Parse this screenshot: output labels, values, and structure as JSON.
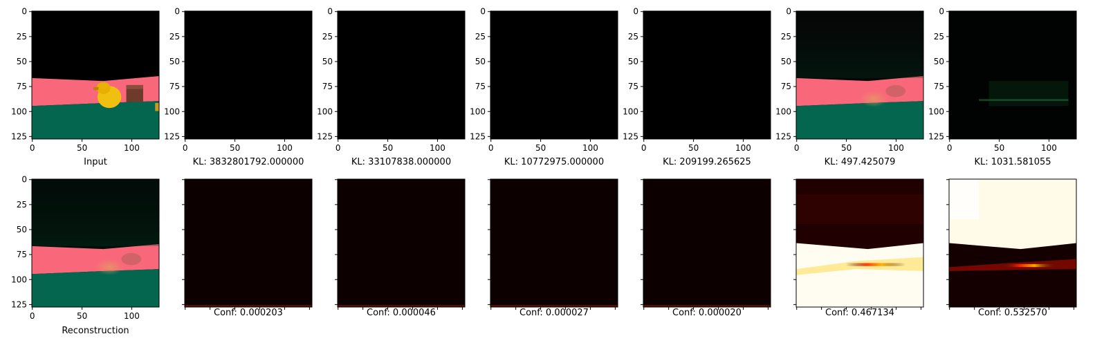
{
  "chart_data": {
    "type": "image-grid",
    "rows": 2,
    "cols": 7,
    "image_extent": [
      0,
      128
    ],
    "x_ticks": [
      "0",
      "50",
      "100"
    ],
    "y_ticks": [
      "0",
      "25",
      "50",
      "75",
      "100",
      "125"
    ],
    "panels_top": [
      {
        "label": "Input",
        "content": "scene"
      },
      {
        "label": "KL: 3832801792.000000",
        "content": "black"
      },
      {
        "label": "KL: 33107838.000000",
        "content": "black"
      },
      {
        "label": "KL: 10772975.000000",
        "content": "black"
      },
      {
        "label": "KL: 209199.265625",
        "content": "black"
      },
      {
        "label": "KL: 497.425079",
        "content": "recon-dim"
      },
      {
        "label": "KL: 1031.581055",
        "content": "dark-green"
      }
    ],
    "panels_bottom": [
      {
        "label": "Reconstruction",
        "content": "recon",
        "ticks": "labeled"
      },
      {
        "label": "Conf: 0.000203",
        "content": "conf-dark",
        "ticks": "unlabeled"
      },
      {
        "label": "Conf: 0.000046",
        "content": "conf-dark",
        "ticks": "unlabeled"
      },
      {
        "label": "Conf: 0.000027",
        "content": "conf-dark",
        "ticks": "unlabeled"
      },
      {
        "label": "Conf: 0.000020",
        "content": "conf-dark",
        "ticks": "unlabeled"
      },
      {
        "label": "Conf: 0.467134",
        "content": "conf-bottom-bright",
        "ticks": "unlabeled"
      },
      {
        "label": "Conf: 0.532570",
        "content": "conf-top-bright",
        "ticks": "unlabeled"
      }
    ],
    "colors": {
      "sky": "#000000",
      "wall": "#f9687a",
      "floor": "#056650",
      "duck": "#f0c010",
      "box": "#6e3a2c",
      "heat_low": "#0d0000",
      "heat_mid": "#d41c00",
      "heat_high": "#ffffff"
    }
  }
}
